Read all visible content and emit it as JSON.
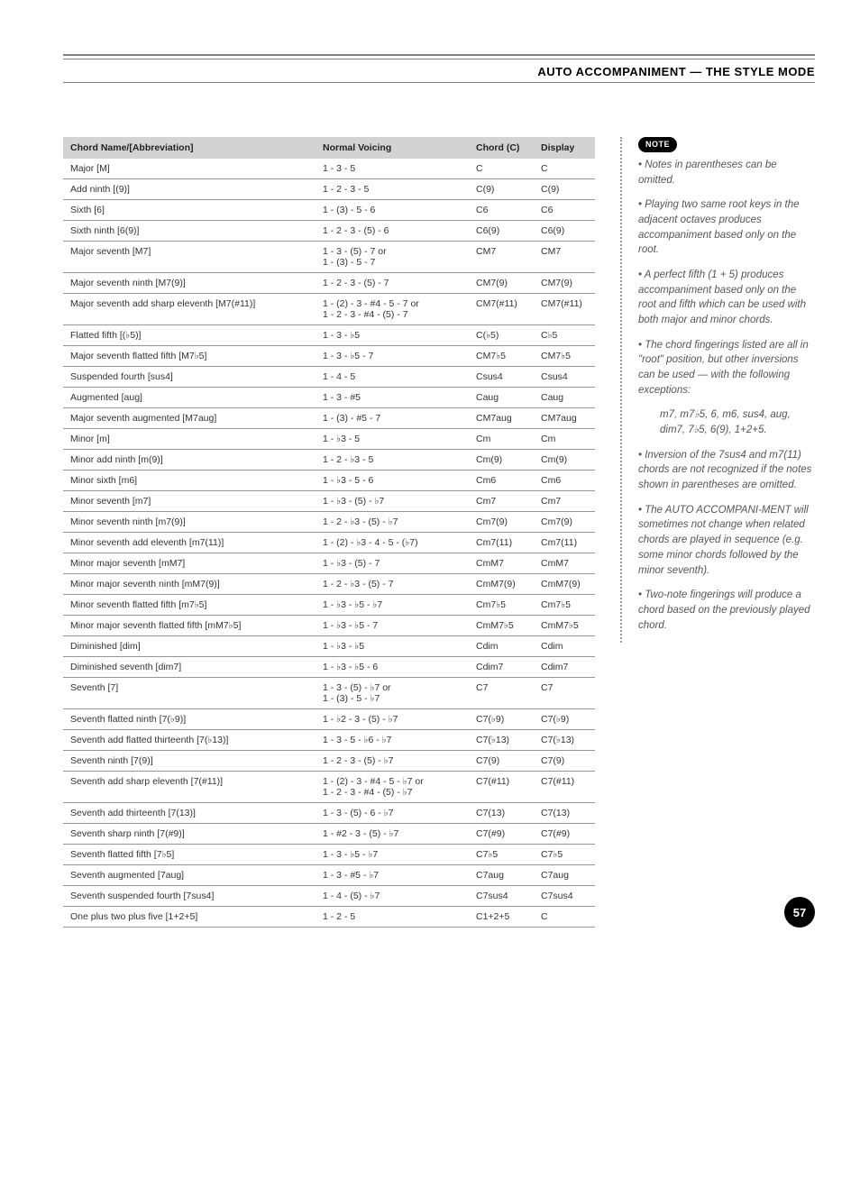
{
  "section_title": "AUTO ACCOMPANIMENT — THE STYLE MODE",
  "headers": {
    "name": "Chord Name/[Abbreviation]",
    "voicing": "Normal Voicing",
    "chord": "Chord (C)",
    "display": "Display"
  },
  "rows": [
    {
      "name": "Major [M]",
      "voicing": "1 - 3 - 5",
      "chord": "C",
      "display": "C"
    },
    {
      "name": "Add ninth [(9)]",
      "voicing": "1 - 2 - 3 - 5",
      "chord": "C(9)",
      "display": "C(9)"
    },
    {
      "name": "Sixth [6]",
      "voicing": "1 - (3) - 5 - 6",
      "chord": "C6",
      "display": "C6"
    },
    {
      "name": "Sixth ninth [6(9)]",
      "voicing": "1 - 2 - 3 - (5) - 6",
      "chord": "C6(9)",
      "display": "C6(9)"
    },
    {
      "name": "Major seventh [M7]",
      "voicing": "1 - 3 - (5) - 7 or\n1 - (3) - 5 - 7",
      "chord": "CM7",
      "display": "CM7"
    },
    {
      "name": "Major seventh ninth [M7(9)]",
      "voicing": "1 - 2 - 3 - (5) - 7",
      "chord": "CM7(9)",
      "display": "CM7(9)"
    },
    {
      "name": "Major seventh add sharp eleventh [M7(#11)]",
      "voicing": "1 - (2) - 3 - #4 - 5 - 7 or\n1 - 2 - 3 - #4 - (5) - 7",
      "chord": "CM7(#11)",
      "display": "CM7(#11)"
    },
    {
      "name": "Flatted fifth [(♭5)]",
      "voicing": "1 - 3 - ♭5",
      "chord": "C(♭5)",
      "display": "C♭5"
    },
    {
      "name": "Major seventh flatted fifth [M7♭5]",
      "voicing": "1 - 3 - ♭5 - 7",
      "chord": "CM7♭5",
      "display": "CM7♭5"
    },
    {
      "name": "Suspended fourth [sus4]",
      "voicing": "1 - 4 - 5",
      "chord": "Csus4",
      "display": "Csus4"
    },
    {
      "name": "Augmented [aug]",
      "voicing": "1 - 3 - #5",
      "chord": "Caug",
      "display": "Caug"
    },
    {
      "name": "Major seventh augmented [M7aug]",
      "voicing": "1 - (3) - #5 - 7",
      "chord": "CM7aug",
      "display": "CM7aug"
    },
    {
      "name": "Minor [m]",
      "voicing": "1 - ♭3 - 5",
      "chord": "Cm",
      "display": "Cm"
    },
    {
      "name": "Minor add ninth [m(9)]",
      "voicing": "1 - 2 - ♭3 - 5",
      "chord": "Cm(9)",
      "display": "Cm(9)"
    },
    {
      "name": "Minor sixth [m6]",
      "voicing": "1 - ♭3 - 5 - 6",
      "chord": "Cm6",
      "display": "Cm6"
    },
    {
      "name": "Minor seventh [m7]",
      "voicing": "1 - ♭3 - (5) - ♭7",
      "chord": "Cm7",
      "display": "Cm7"
    },
    {
      "name": "Minor seventh ninth [m7(9)]",
      "voicing": "1 - 2 - ♭3 - (5) - ♭7",
      "chord": "Cm7(9)",
      "display": "Cm7(9)"
    },
    {
      "name": "Minor seventh add eleventh [m7(11)]",
      "voicing": "1 - (2) - ♭3 - 4 - 5 - (♭7)",
      "chord": "Cm7(11)",
      "display": "Cm7(11)"
    },
    {
      "name": "Minor major seventh [mM7]",
      "voicing": "1 - ♭3 - (5) - 7",
      "chord": "CmM7",
      "display": "CmM7"
    },
    {
      "name": "Minor major seventh ninth [mM7(9)]",
      "voicing": "1 - 2 - ♭3 - (5) - 7",
      "chord": "CmM7(9)",
      "display": "CmM7(9)"
    },
    {
      "name": "Minor seventh flatted fifth [m7♭5]",
      "voicing": "1 - ♭3 - ♭5 - ♭7",
      "chord": "Cm7♭5",
      "display": "Cm7♭5"
    },
    {
      "name": "Minor major seventh flatted fifth [mM7♭5]",
      "voicing": "1 - ♭3 - ♭5 - 7",
      "chord": "CmM7♭5",
      "display": "CmM7♭5"
    },
    {
      "name": "Diminished [dim]",
      "voicing": "1 - ♭3 - ♭5",
      "chord": "Cdim",
      "display": "Cdim"
    },
    {
      "name": "Diminished seventh [dim7]",
      "voicing": "1 - ♭3 - ♭5 - 6",
      "chord": "Cdim7",
      "display": "Cdim7"
    },
    {
      "name": "Seventh [7]",
      "voicing": "1 - 3 - (5) - ♭7 or\n1 - (3) - 5 - ♭7",
      "chord": "C7",
      "display": "C7"
    },
    {
      "name": "Seventh flatted ninth [7(♭9)]",
      "voicing": "1 - ♭2 - 3 - (5) - ♭7",
      "chord": "C7(♭9)",
      "display": "C7(♭9)"
    },
    {
      "name": "Seventh add flatted thirteenth [7(♭13)]",
      "voicing": "1 - 3 - 5 - ♭6 - ♭7",
      "chord": "C7(♭13)",
      "display": "C7(♭13)"
    },
    {
      "name": "Seventh ninth [7(9)]",
      "voicing": "1 - 2 - 3 - (5) - ♭7",
      "chord": "C7(9)",
      "display": "C7(9)"
    },
    {
      "name": "Seventh add sharp eleventh [7(#11)]",
      "voicing": "1 - (2) - 3 - #4 - 5 - ♭7 or\n1 - 2 - 3 - #4 - (5) - ♭7",
      "chord": "C7(#11)",
      "display": "C7(#11)"
    },
    {
      "name": "Seventh add thirteenth [7(13)]",
      "voicing": "1 - 3 - (5) - 6 - ♭7",
      "chord": "C7(13)",
      "display": "C7(13)"
    },
    {
      "name": "Seventh sharp ninth [7(#9)]",
      "voicing": "1 - #2 - 3 - (5) - ♭7",
      "chord": "C7(#9)",
      "display": "C7(#9)"
    },
    {
      "name": "Seventh flatted fifth [7♭5]",
      "voicing": "1 - 3 - ♭5 - ♭7",
      "chord": "C7♭5",
      "display": "C7♭5"
    },
    {
      "name": "Seventh augmented [7aug]",
      "voicing": "1 - 3 - #5 - ♭7",
      "chord": "C7aug",
      "display": "C7aug"
    },
    {
      "name": "Seventh suspended fourth [7sus4]",
      "voicing": "1 - 4 - (5) - ♭7",
      "chord": "C7sus4",
      "display": "C7sus4"
    },
    {
      "name": "One plus two plus five [1+2+5]",
      "voicing": "1 - 2 - 5",
      "chord": "C1+2+5",
      "display": "C"
    }
  ],
  "note_label": "NOTE",
  "notes": [
    "• Notes in parentheses can be omitted.",
    "• Playing two same root keys in the adjacent octaves produces accompaniment based only on the root.",
    "• A perfect fifth (1 + 5) produces accompaniment based only on the root and fifth which can be used with both major and minor chords.",
    "• The chord fingerings listed are all in \"root\" position, but other inversions can be used — with the following exceptions:",
    "m7, m7♭5, 6, m6, sus4, aug, dim7, 7♭5, 6(9), 1+2+5.",
    "• Inversion of the 7sus4 and m7(11) chords are not recognized if the notes shown in parentheses are omitted.",
    "• The AUTO ACCOMPANI-MENT will sometimes not change when related chords are played in sequence (e.g. some minor chords followed by the minor seventh).",
    "• Two-note fingerings will produce a chord based on the previously played chord."
  ],
  "page_number": "57"
}
